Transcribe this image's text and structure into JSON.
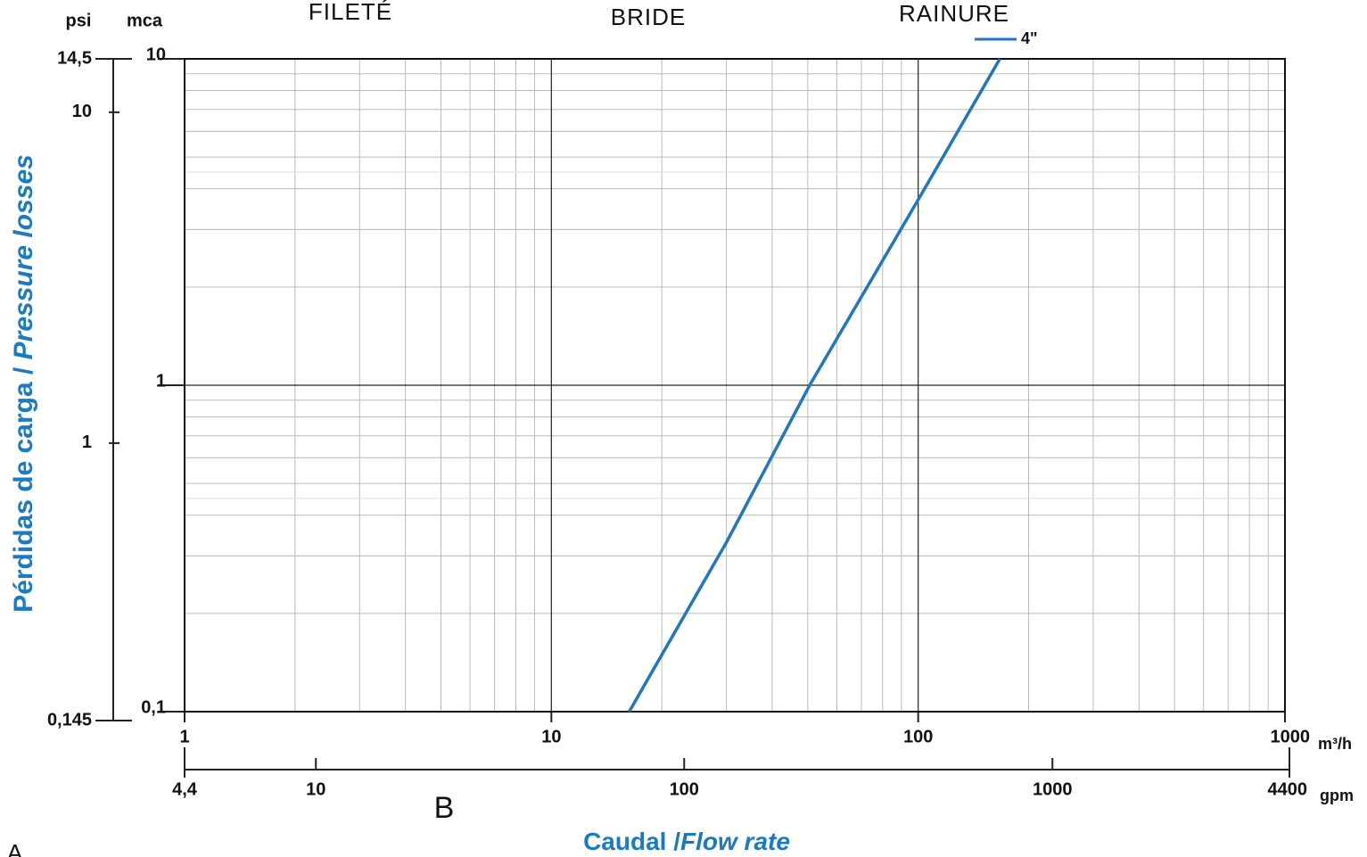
{
  "chart_data": {
    "type": "line",
    "log_x": true,
    "log_y": true,
    "grid": true,
    "header_labels": [
      "FILETÉ",
      "BRIDE",
      "RAINURE"
    ],
    "y_unit": "mca",
    "y2_unit": "psi",
    "x_unit": "m³/h",
    "x2_unit": "gpm",
    "ylabel": [
      "Pérdidas de carga / ",
      "Pressure losses"
    ],
    "xlabel": [
      "Caudal /",
      "Flow rate"
    ],
    "label_color": "#1a7ac4",
    "xlim": [
      1,
      1000
    ],
    "xticks": [
      1,
      10,
      100,
      1000
    ],
    "ylim": [
      0.1,
      10
    ],
    "yticks": [
      {
        "value": 0.1,
        "label": "0,1"
      },
      1,
      10
    ],
    "y2lim": [
      0.145,
      14.5
    ],
    "y2ticks": [
      {
        "value": 0.145,
        "label": "0,145"
      },
      1,
      10,
      {
        "value": 14.5,
        "label": "14,5"
      }
    ],
    "x2lim": [
      4.4,
      4400
    ],
    "x2ticks": [
      {
        "value": 4.4,
        "label": "4,4"
      },
      10,
      100,
      1000,
      4400
    ],
    "series": [
      {
        "name": "4\"",
        "color": "#1f77c0",
        "x": [
          16.3,
          30,
          50.6,
          100,
          167
        ],
        "values": [
          0.1,
          0.33,
          1,
          3.7,
          10
        ]
      }
    ],
    "annotations": [
      "B",
      "A"
    ]
  }
}
